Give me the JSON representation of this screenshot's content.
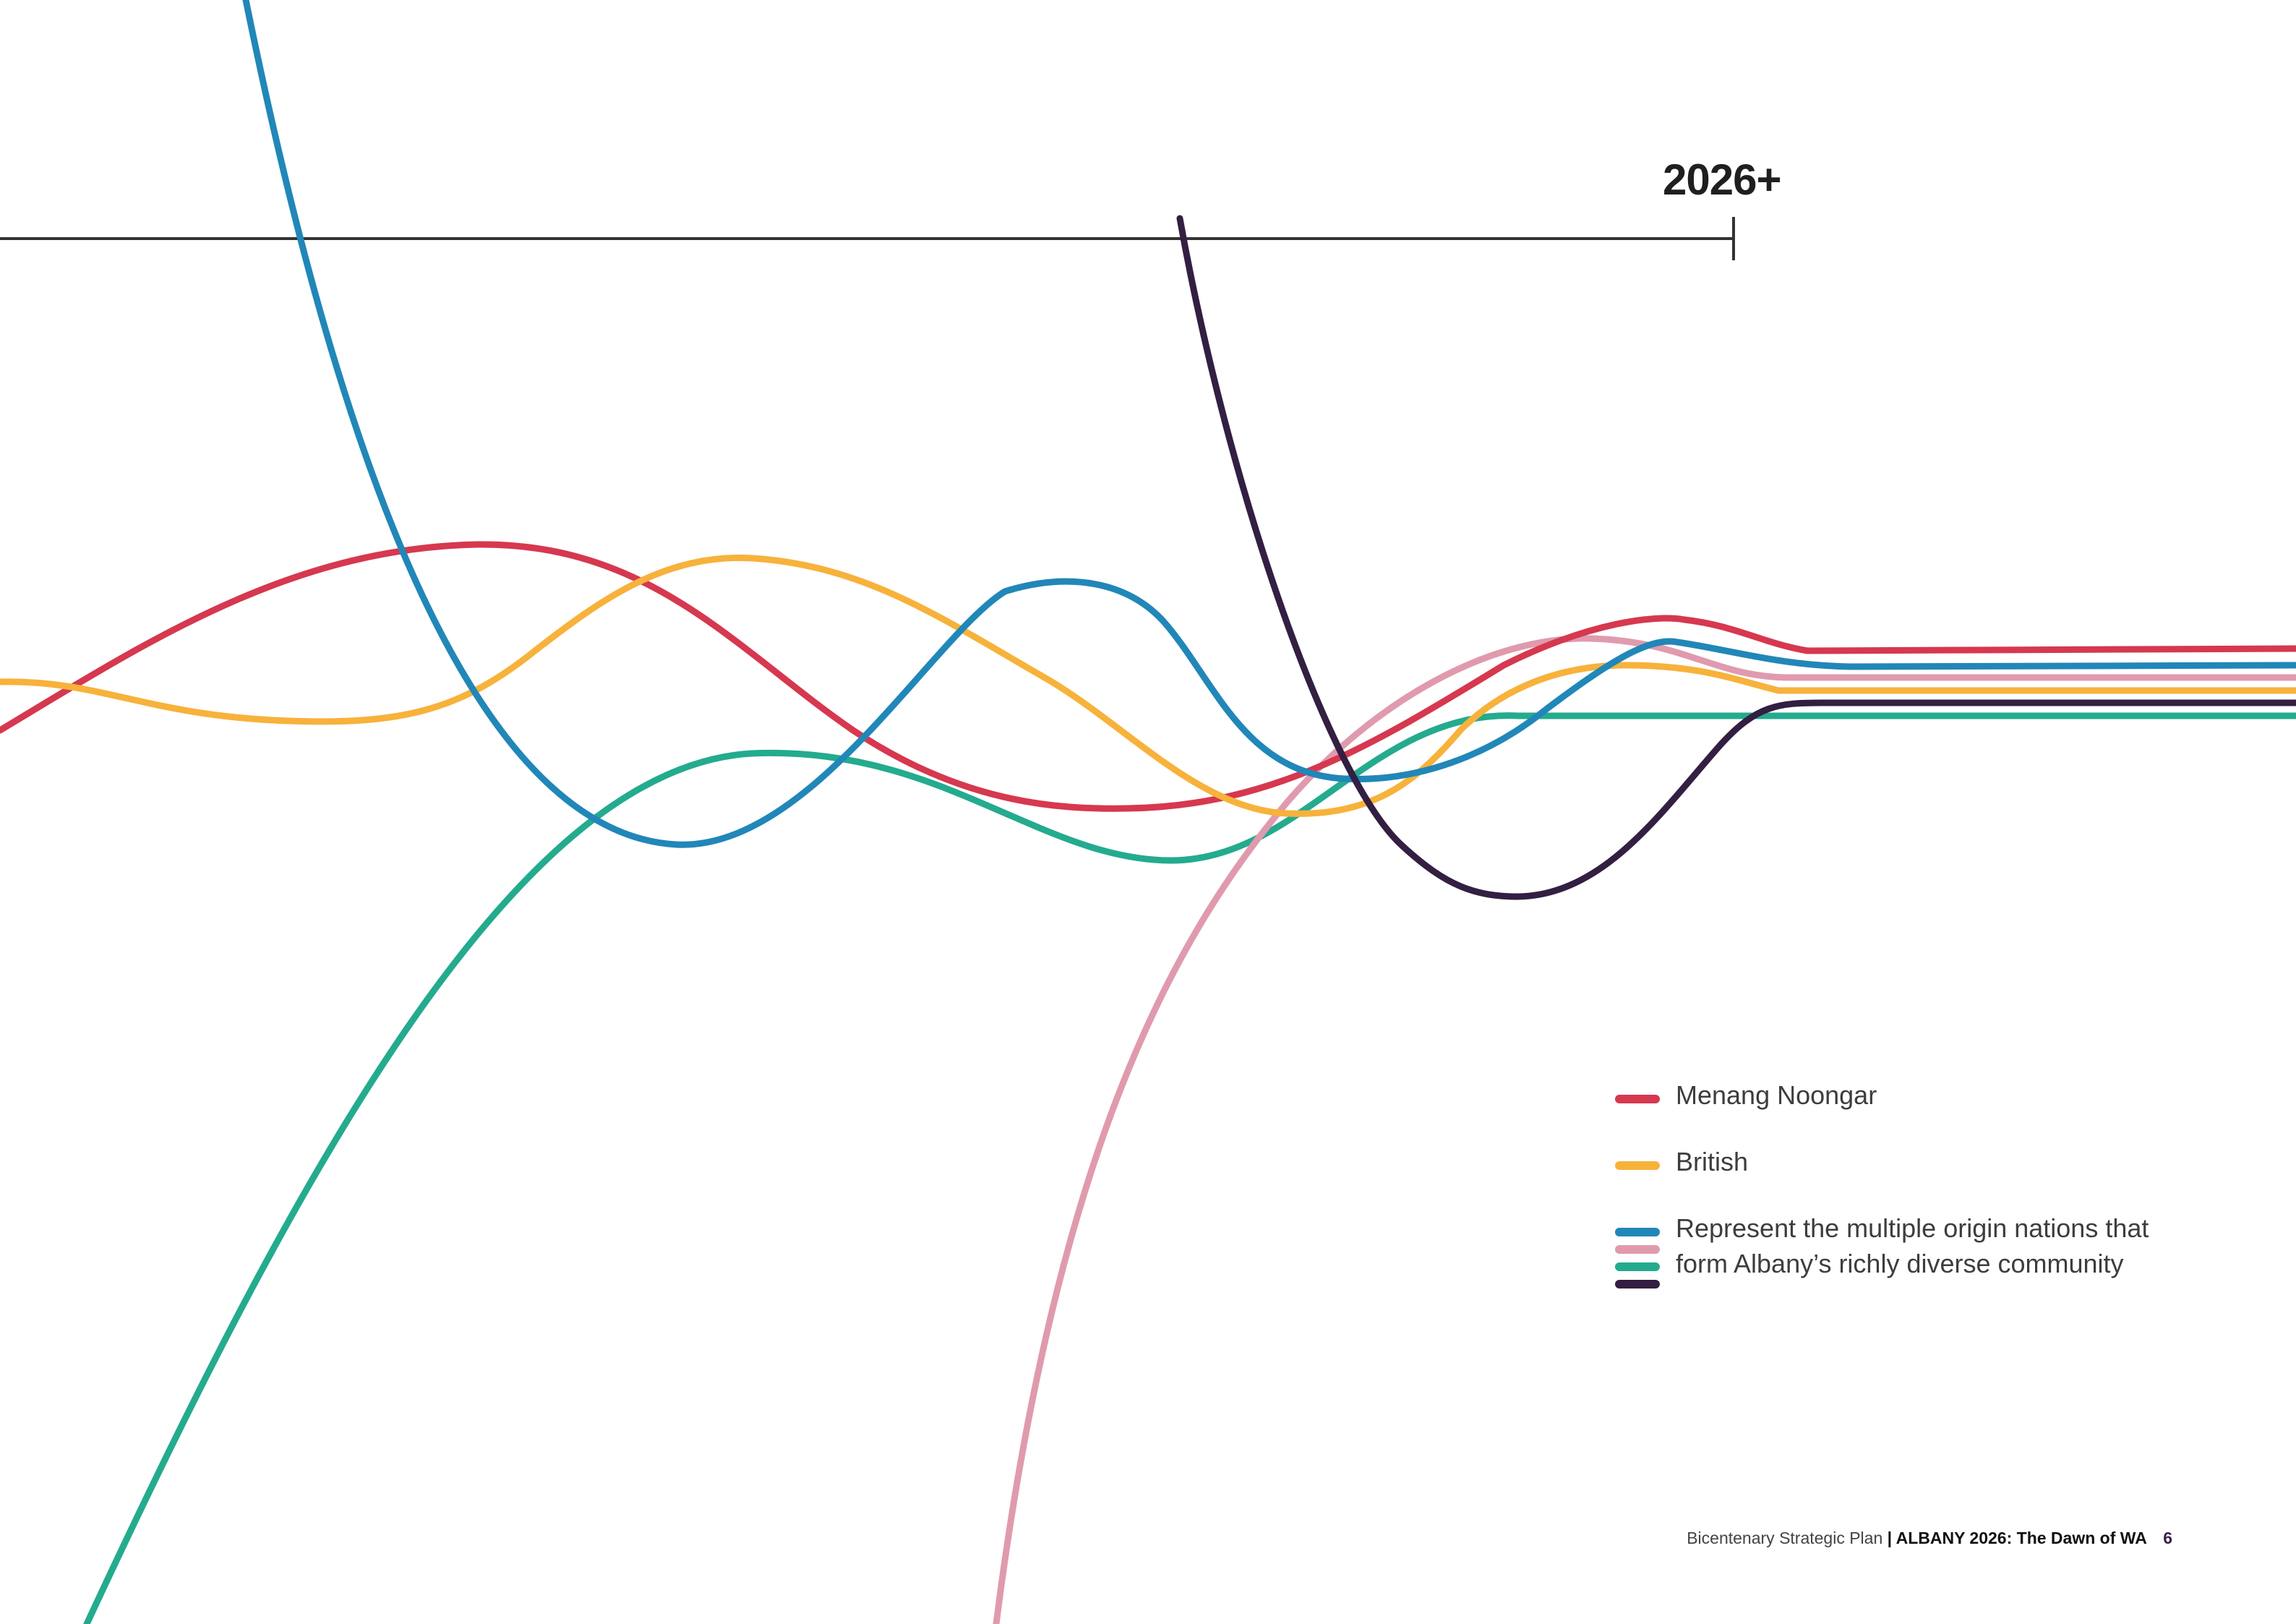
{
  "timeline": {
    "label": "2026+"
  },
  "colors": {
    "menang_noongar": "#d6384f",
    "british": "#f7b23b",
    "blue": "#2187b8",
    "pink": "#e09aae",
    "green": "#24ab8e",
    "dark_purple": "#331f42",
    "timeline": "#333333"
  },
  "lines": [
    {
      "id": "green",
      "color": "#24ab8e"
    },
    {
      "id": "pink",
      "color": "#e09aae"
    },
    {
      "id": "menang-noongar",
      "color": "#d6384f"
    },
    {
      "id": "british",
      "color": "#f7b23b"
    },
    {
      "id": "blue",
      "color": "#2187b8"
    },
    {
      "id": "dark-purple",
      "color": "#331f42"
    }
  ],
  "legend": {
    "items": [
      {
        "label": "Menang Noongar",
        "colors": [
          "#d6384f"
        ]
      },
      {
        "label": "British",
        "colors": [
          "#f7b23b"
        ]
      },
      {
        "label": "Represent the multiple origin nations that form Albany’s richly diverse community",
        "colors": [
          "#2187b8",
          "#e09aae",
          "#24ab8e",
          "#331f42"
        ]
      }
    ]
  },
  "footer": {
    "plan": "Bicentenary Strategic Plan",
    "title": "| ALBANY 2026: The Dawn of WA",
    "page": "6"
  }
}
